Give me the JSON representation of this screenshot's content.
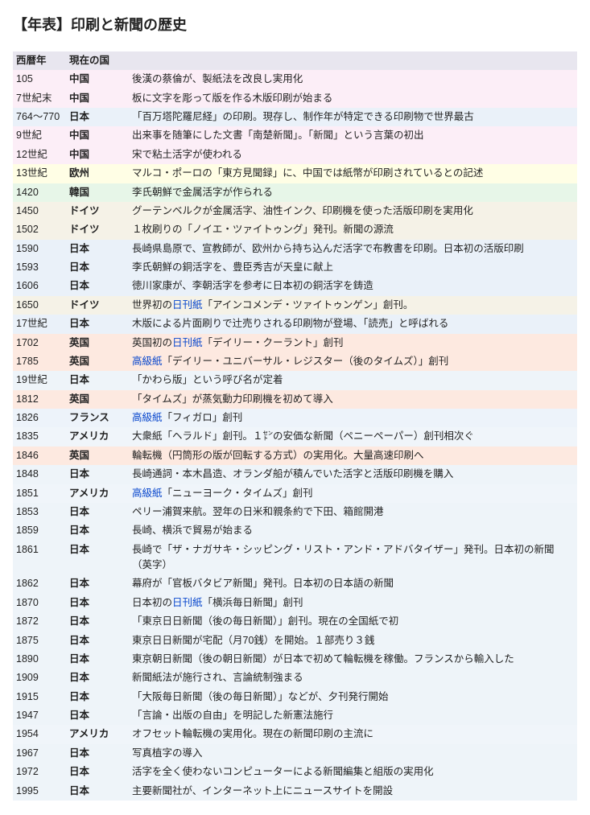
{
  "title": "【年表】印刷と新聞の歴史",
  "columns": {
    "year": "西暦年",
    "country": "現在の国"
  },
  "rows": [
    {
      "year": "105",
      "country": "中国",
      "cls": "cn",
      "segs": [
        [
          "後漢の蔡倫が、製紙法を改良し実用化"
        ]
      ]
    },
    {
      "year": "7世紀末",
      "country": "中国",
      "cls": "cn",
      "segs": [
        [
          "板に文字を彫って版を作る木版印刷が始まる"
        ]
      ]
    },
    {
      "year": "764～770",
      "country": "日本",
      "cls": "jp1",
      "segs": [
        [
          "「百万塔陀羅尼経」の印刷。現存し、制作年が特定できる印刷物で世界最古"
        ]
      ]
    },
    {
      "year": "9世紀",
      "country": "中国",
      "cls": "cn",
      "segs": [
        [
          "出来事を随筆にした文書「南楚新聞」。「新聞」という言葉の初出"
        ]
      ]
    },
    {
      "year": "12世紀",
      "country": "中国",
      "cls": "cn",
      "segs": [
        [
          "宋で粘土活字が使われる"
        ]
      ]
    },
    {
      "year": "13世紀",
      "country": "欧州",
      "cls": "eu",
      "segs": [
        [
          "マルコ・ポーロの「東方見聞録」に、中国では紙幣が印刷されているとの記述"
        ]
      ]
    },
    {
      "year": "1420",
      "country": "韓国",
      "cls": "ko",
      "segs": [
        [
          "李氏朝鮮で金属活字が作られる"
        ]
      ]
    },
    {
      "year": "1450",
      "country": "ドイツ",
      "cls": "de",
      "segs": [
        [
          "グーテンベルクが金属活字、油性インク、印刷機を使った活版印刷を実用化"
        ]
      ]
    },
    {
      "year": "1502",
      "country": "ドイツ",
      "cls": "de",
      "segs": [
        [
          "１枚刷りの「ノイエ・ツァイトゥング」発刊。新聞の源流"
        ]
      ]
    },
    {
      "year": "1590",
      "country": "日本",
      "cls": "jp1",
      "segs": [
        [
          "長崎県島原で、宣教師が、欧州から持ち込んだ活字で布教書を印刷。日本初の活版印刷"
        ]
      ]
    },
    {
      "year": "1593",
      "country": "日本",
      "cls": "jp1",
      "segs": [
        [
          "李氏朝鮮の銅活字を、豊臣秀吉が天皇に献上"
        ]
      ]
    },
    {
      "year": "1606",
      "country": "日本",
      "cls": "jp1",
      "segs": [
        [
          "徳川家康が、李朝活字を参考に日本初の銅活字を鋳造"
        ]
      ]
    },
    {
      "year": "1650",
      "country": "ドイツ",
      "cls": "de",
      "segs": [
        [
          "世界初の"
        ],
        [
          "日刊紙",
          "link"
        ],
        [
          "「アインコメンデ・ツァイトゥンゲン」創刊。"
        ]
      ]
    },
    {
      "year": "17世紀",
      "country": "日本",
      "cls": "jp1",
      "segs": [
        [
          "木版による片面刷りで辻売りされる印刷物が登場、「読売」と呼ばれる"
        ]
      ]
    },
    {
      "year": "1702",
      "country": "英国",
      "cls": "uk",
      "segs": [
        [
          "英国初の"
        ],
        [
          "日刊紙",
          "link"
        ],
        [
          "「デイリー・クーラント」創刊"
        ]
      ]
    },
    {
      "year": "1785",
      "country": "英国",
      "cls": "uk",
      "segs": [
        [
          "高級紙",
          "link"
        ],
        [
          "「デイリー・ユニバーサル・レジスター（後のタイムズ）」創刊"
        ]
      ]
    },
    {
      "year": "19世紀",
      "country": "日本",
      "cls": "jp2",
      "segs": [
        [
          "「かわら版」という呼び名が定着"
        ]
      ]
    },
    {
      "year": "1812",
      "country": "英国",
      "cls": "uk",
      "segs": [
        [
          "「タイムズ」が蒸気動力印刷機を初めて導入"
        ]
      ]
    },
    {
      "year": "1826",
      "country": "フランス",
      "cls": "fr",
      "segs": [
        [
          "高級紙",
          "link"
        ],
        [
          "「フィガロ」創刊"
        ]
      ]
    },
    {
      "year": "1835",
      "country": "アメリカ",
      "cls": "us",
      "segs": [
        [
          "大衆紙「ヘラルド」創刊。１㌣の安価な新聞（ペニーペーパー）創刊相次ぐ"
        ]
      ]
    },
    {
      "year": "1846",
      "country": "英国",
      "cls": "uk",
      "segs": [
        [
          "輪転機（円筒形の版が回転する方式）の実用化。大量高速印刷へ"
        ]
      ]
    },
    {
      "year": "1848",
      "country": "日本",
      "cls": "jp2",
      "segs": [
        [
          "長崎通詞・本木昌造、オランダ船が積んでいた活字と活版印刷機を購入"
        ]
      ]
    },
    {
      "year": "1851",
      "country": "アメリカ",
      "cls": "us",
      "segs": [
        [
          "高級紙",
          "link"
        ],
        [
          "「ニューヨーク・タイムズ」創刊"
        ]
      ]
    },
    {
      "year": "1853",
      "country": "日本",
      "cls": "jp2",
      "segs": [
        [
          "ペリー浦賀来航。翌年の日米和親条約で下田、箱館開港"
        ]
      ]
    },
    {
      "year": "1859",
      "country": "日本",
      "cls": "jp2",
      "segs": [
        [
          "長崎、横浜で貿易が始まる"
        ]
      ]
    },
    {
      "year": "1861",
      "country": "日本",
      "cls": "jp2",
      "segs": [
        [
          "長崎で「ザ・ナガサキ・シッピング・リスト・アンド・アドバタイザー」発刊。日本初の新聞（英字）"
        ]
      ]
    },
    {
      "year": "1862",
      "country": "日本",
      "cls": "jp2",
      "segs": [
        [
          "幕府が「官板バタビア新聞」発刊。日本初の日本語の新聞"
        ]
      ]
    },
    {
      "year": "1870",
      "country": "日本",
      "cls": "jp2",
      "segs": [
        [
          "日本初の"
        ],
        [
          "日刊紙",
          "link"
        ],
        [
          "「横浜毎日新聞」創刊"
        ]
      ]
    },
    {
      "year": "1872",
      "country": "日本",
      "cls": "jp2",
      "segs": [
        [
          "「東京日日新聞（後の毎日新聞）」創刊。現在の全国紙で初"
        ]
      ]
    },
    {
      "year": "1875",
      "country": "日本",
      "cls": "jp2",
      "segs": [
        [
          "東京日日新聞が宅配（月70銭）を開始。１部売り３銭"
        ]
      ]
    },
    {
      "year": "1890",
      "country": "日本",
      "cls": "jp2",
      "segs": [
        [
          "東京朝日新聞（後の朝日新聞）が日本で初めて輪転機を稼働。フランスから輸入した"
        ]
      ]
    },
    {
      "year": "1909",
      "country": "日本",
      "cls": "jp2",
      "segs": [
        [
          "新聞紙法が施行され、言論統制強まる"
        ]
      ]
    },
    {
      "year": "1915",
      "country": "日本",
      "cls": "jp2",
      "segs": [
        [
          "「大阪毎日新聞（後の毎日新聞）」などが、夕刊発行開始"
        ]
      ]
    },
    {
      "year": "1947",
      "country": "日本",
      "cls": "jp2",
      "segs": [
        [
          "「言論・出版の自由」を明記した新憲法施行"
        ]
      ]
    },
    {
      "year": "1954",
      "country": "アメリカ",
      "cls": "us",
      "segs": [
        [
          "オフセット輪転機の実用化。現在の新聞印刷の主流に"
        ]
      ]
    },
    {
      "year": "1967",
      "country": "日本",
      "cls": "jp2",
      "segs": [
        [
          "写真植字の導入"
        ]
      ]
    },
    {
      "year": "1972",
      "country": "日本",
      "cls": "jp2",
      "segs": [
        [
          "活字を全く使わないコンピューターによる新聞編集と組版の実用化"
        ]
      ]
    },
    {
      "year": "1995",
      "country": "日本",
      "cls": "jp2",
      "segs": [
        [
          "主要新聞社が、インターネット上にニュースサイトを開設"
        ]
      ]
    }
  ]
}
